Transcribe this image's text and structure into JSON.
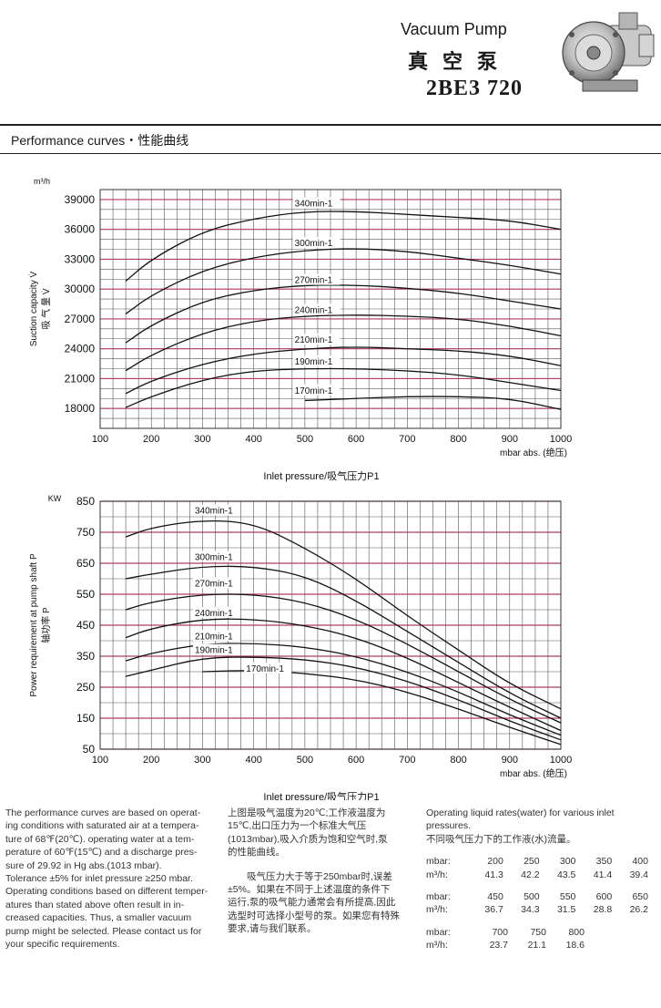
{
  "header": {
    "title_en": "Vacuum Pump",
    "title_cn": "真空泵",
    "model": "2BE3 720"
  },
  "section_title": "Performance curves・性能曲线",
  "chart_data": [
    {
      "type": "line",
      "ylabel_unit": "m³/h",
      "ylabel": "Suction capacity V̇",
      "ylabel_cn": "吸 气 量 V̇",
      "xlabel": "Inlet pressure/吸气压力P1",
      "x_unit": "mbar abs. (绝压)",
      "xlim": [
        100,
        1000
      ],
      "ylim": [
        16000,
        40000
      ],
      "x_ticks": [
        100,
        200,
        300,
        400,
        500,
        600,
        700,
        800,
        900,
        1000
      ],
      "y_ticks": [
        18000,
        21000,
        24000,
        27000,
        30000,
        33000,
        36000,
        39000
      ],
      "grid": true,
      "series": [
        {
          "name": "340min-1",
          "x": [
            150,
            200,
            300,
            400,
            500,
            600,
            700,
            800,
            900,
            1000
          ],
          "values": [
            30800,
            33000,
            35800,
            37100,
            37800,
            37800,
            37500,
            37200,
            36900,
            36000
          ]
        },
        {
          "name": "300min-1",
          "x": [
            150,
            200,
            300,
            400,
            500,
            600,
            700,
            800,
            900,
            1000
          ],
          "values": [
            27500,
            29400,
            31900,
            33200,
            33900,
            34100,
            33800,
            33100,
            32400,
            31500
          ]
        },
        {
          "name": "270min-1",
          "x": [
            150,
            200,
            300,
            400,
            500,
            600,
            700,
            800,
            900,
            1000
          ],
          "values": [
            24600,
            26400,
            28800,
            29900,
            30400,
            30400,
            30100,
            29600,
            28800,
            28000
          ]
        },
        {
          "name": "240min-1",
          "x": [
            150,
            200,
            300,
            400,
            500,
            600,
            700,
            800,
            900,
            1000
          ],
          "values": [
            21800,
            23400,
            25600,
            26800,
            27300,
            27400,
            27300,
            27000,
            26300,
            25300
          ]
        },
        {
          "name": "210min-1",
          "x": [
            150,
            200,
            300,
            400,
            500,
            600,
            700,
            800,
            900,
            1000
          ],
          "values": [
            19500,
            20800,
            22500,
            23500,
            24000,
            24200,
            24000,
            23800,
            23300,
            22300
          ]
        },
        {
          "name": "190min-1",
          "x": [
            150,
            200,
            300,
            400,
            500,
            600,
            700,
            800,
            900,
            1000
          ],
          "values": [
            18100,
            19200,
            20900,
            21800,
            22000,
            22000,
            21800,
            21400,
            20600,
            19800
          ]
        },
        {
          "name": "170min-1",
          "x": [
            500,
            600,
            700,
            800,
            900,
            1000
          ],
          "values": [
            18800,
            19000,
            19200,
            19200,
            19000,
            17900
          ]
        }
      ]
    },
    {
      "type": "line",
      "ylabel_unit": "KW",
      "ylabel": "Power requirement at pump shaft P",
      "ylabel_cn": "轴功率 P",
      "xlabel": "Inlet pressure/吸气压力P1",
      "x_unit": "mbar abs. (绝压)",
      "xlim": [
        100,
        1000
      ],
      "ylim": [
        50,
        850
      ],
      "x_ticks": [
        100,
        200,
        300,
        400,
        500,
        600,
        700,
        800,
        900,
        1000
      ],
      "y_ticks": [
        50,
        150,
        250,
        350,
        450,
        550,
        650,
        750,
        850
      ],
      "grid": true,
      "series": [
        {
          "name": "340min-1",
          "x": [
            150,
            200,
            300,
            400,
            500,
            600,
            700,
            800,
            900,
            1000
          ],
          "values": [
            735,
            765,
            790,
            780,
            700,
            600,
            480,
            370,
            260,
            180
          ]
        },
        {
          "name": "300min-1",
          "x": [
            150,
            200,
            300,
            400,
            500,
            600,
            700,
            800,
            900,
            1000
          ],
          "values": [
            600,
            615,
            640,
            640,
            610,
            530,
            430,
            330,
            230,
            150
          ]
        },
        {
          "name": "270min-1",
          "x": [
            150,
            200,
            300,
            400,
            500,
            600,
            700,
            800,
            900,
            1000
          ],
          "values": [
            500,
            525,
            550,
            550,
            525,
            470,
            390,
            300,
            210,
            135
          ]
        },
        {
          "name": "240min-1",
          "x": [
            150,
            200,
            300,
            400,
            500,
            600,
            700,
            800,
            900,
            1000
          ],
          "values": [
            410,
            440,
            470,
            470,
            450,
            410,
            345,
            265,
            185,
            110
          ]
        },
        {
          "name": "210min-1",
          "x": [
            150,
            200,
            300,
            400,
            500,
            600,
            700,
            800,
            900,
            1000
          ],
          "values": [
            335,
            360,
            390,
            392,
            380,
            350,
            300,
            235,
            160,
            95
          ]
        },
        {
          "name": "190min-1",
          "x": [
            150,
            200,
            300,
            400,
            500,
            600,
            700,
            800,
            900,
            1000
          ],
          "values": [
            285,
            305,
            345,
            348,
            340,
            315,
            270,
            210,
            140,
            80
          ]
        },
        {
          "name": "170min-1",
          "x": [
            300,
            400,
            500,
            600,
            700,
            800,
            900,
            1000
          ],
          "values": [
            300,
            305,
            295,
            275,
            235,
            180,
            120,
            65
          ]
        }
      ]
    }
  ],
  "notes": {
    "en": [
      "The performance curves are based on operat-",
      "ing conditions with saturated air at a tempera-",
      "ture of 68℉(20℃). operating water at a tem-",
      "perature of 60℉(15℃) and a discharge pres-",
      "sure of 29.92 in Hg abs.(1013 mbar).",
      "Tolerance ±5% for inlet pressure ≥250 mbar.",
      "Operating conditions based on different temper-",
      "atures than stated above often result in in-",
      "creased capacities. Thus, a smaller vacuum",
      "pump might be selected. Please contact us for",
      "your specific requirements."
    ],
    "cn_1": [
      "上图是吸气温度为20℃;工作液温度为",
      "15℃,出口压力为一个标准大气压",
      "(1013mbar),吸入介质为饱和空气时,泵",
      "的性能曲线。"
    ],
    "cn_2": [
      "吸气压力大于等于250mbar时,误差",
      "±5%。如果在不同于上述温度的条件下",
      "运行,泵的吸气能力通常会有所提高,因此",
      "选型时可选择小型号的泵。如果您有特殊",
      "要求,请与我们联系。"
    ],
    "rates_title_en": "Operating liquid rates(water) for various inlet pressures.",
    "rates_title_cn": "不同吸气压力下的工作液(水)流量。",
    "rates_label_p": "mbar:",
    "rates_label_q": "m³/h:",
    "rates": [
      {
        "p": [
          "200",
          "250",
          "300",
          "350",
          "400"
        ],
        "q": [
          "41.3",
          "42.2",
          "43.5",
          "41.4",
          "39.4"
        ]
      },
      {
        "p": [
          "450",
          "500",
          "550",
          "600",
          "650"
        ],
        "q": [
          "36.7",
          "34.3",
          "31.5",
          "28.8",
          "26.2"
        ]
      },
      {
        "p": [
          "700",
          "750",
          "800"
        ],
        "q": [
          "23.7",
          "21.1",
          "18.6"
        ]
      }
    ]
  }
}
